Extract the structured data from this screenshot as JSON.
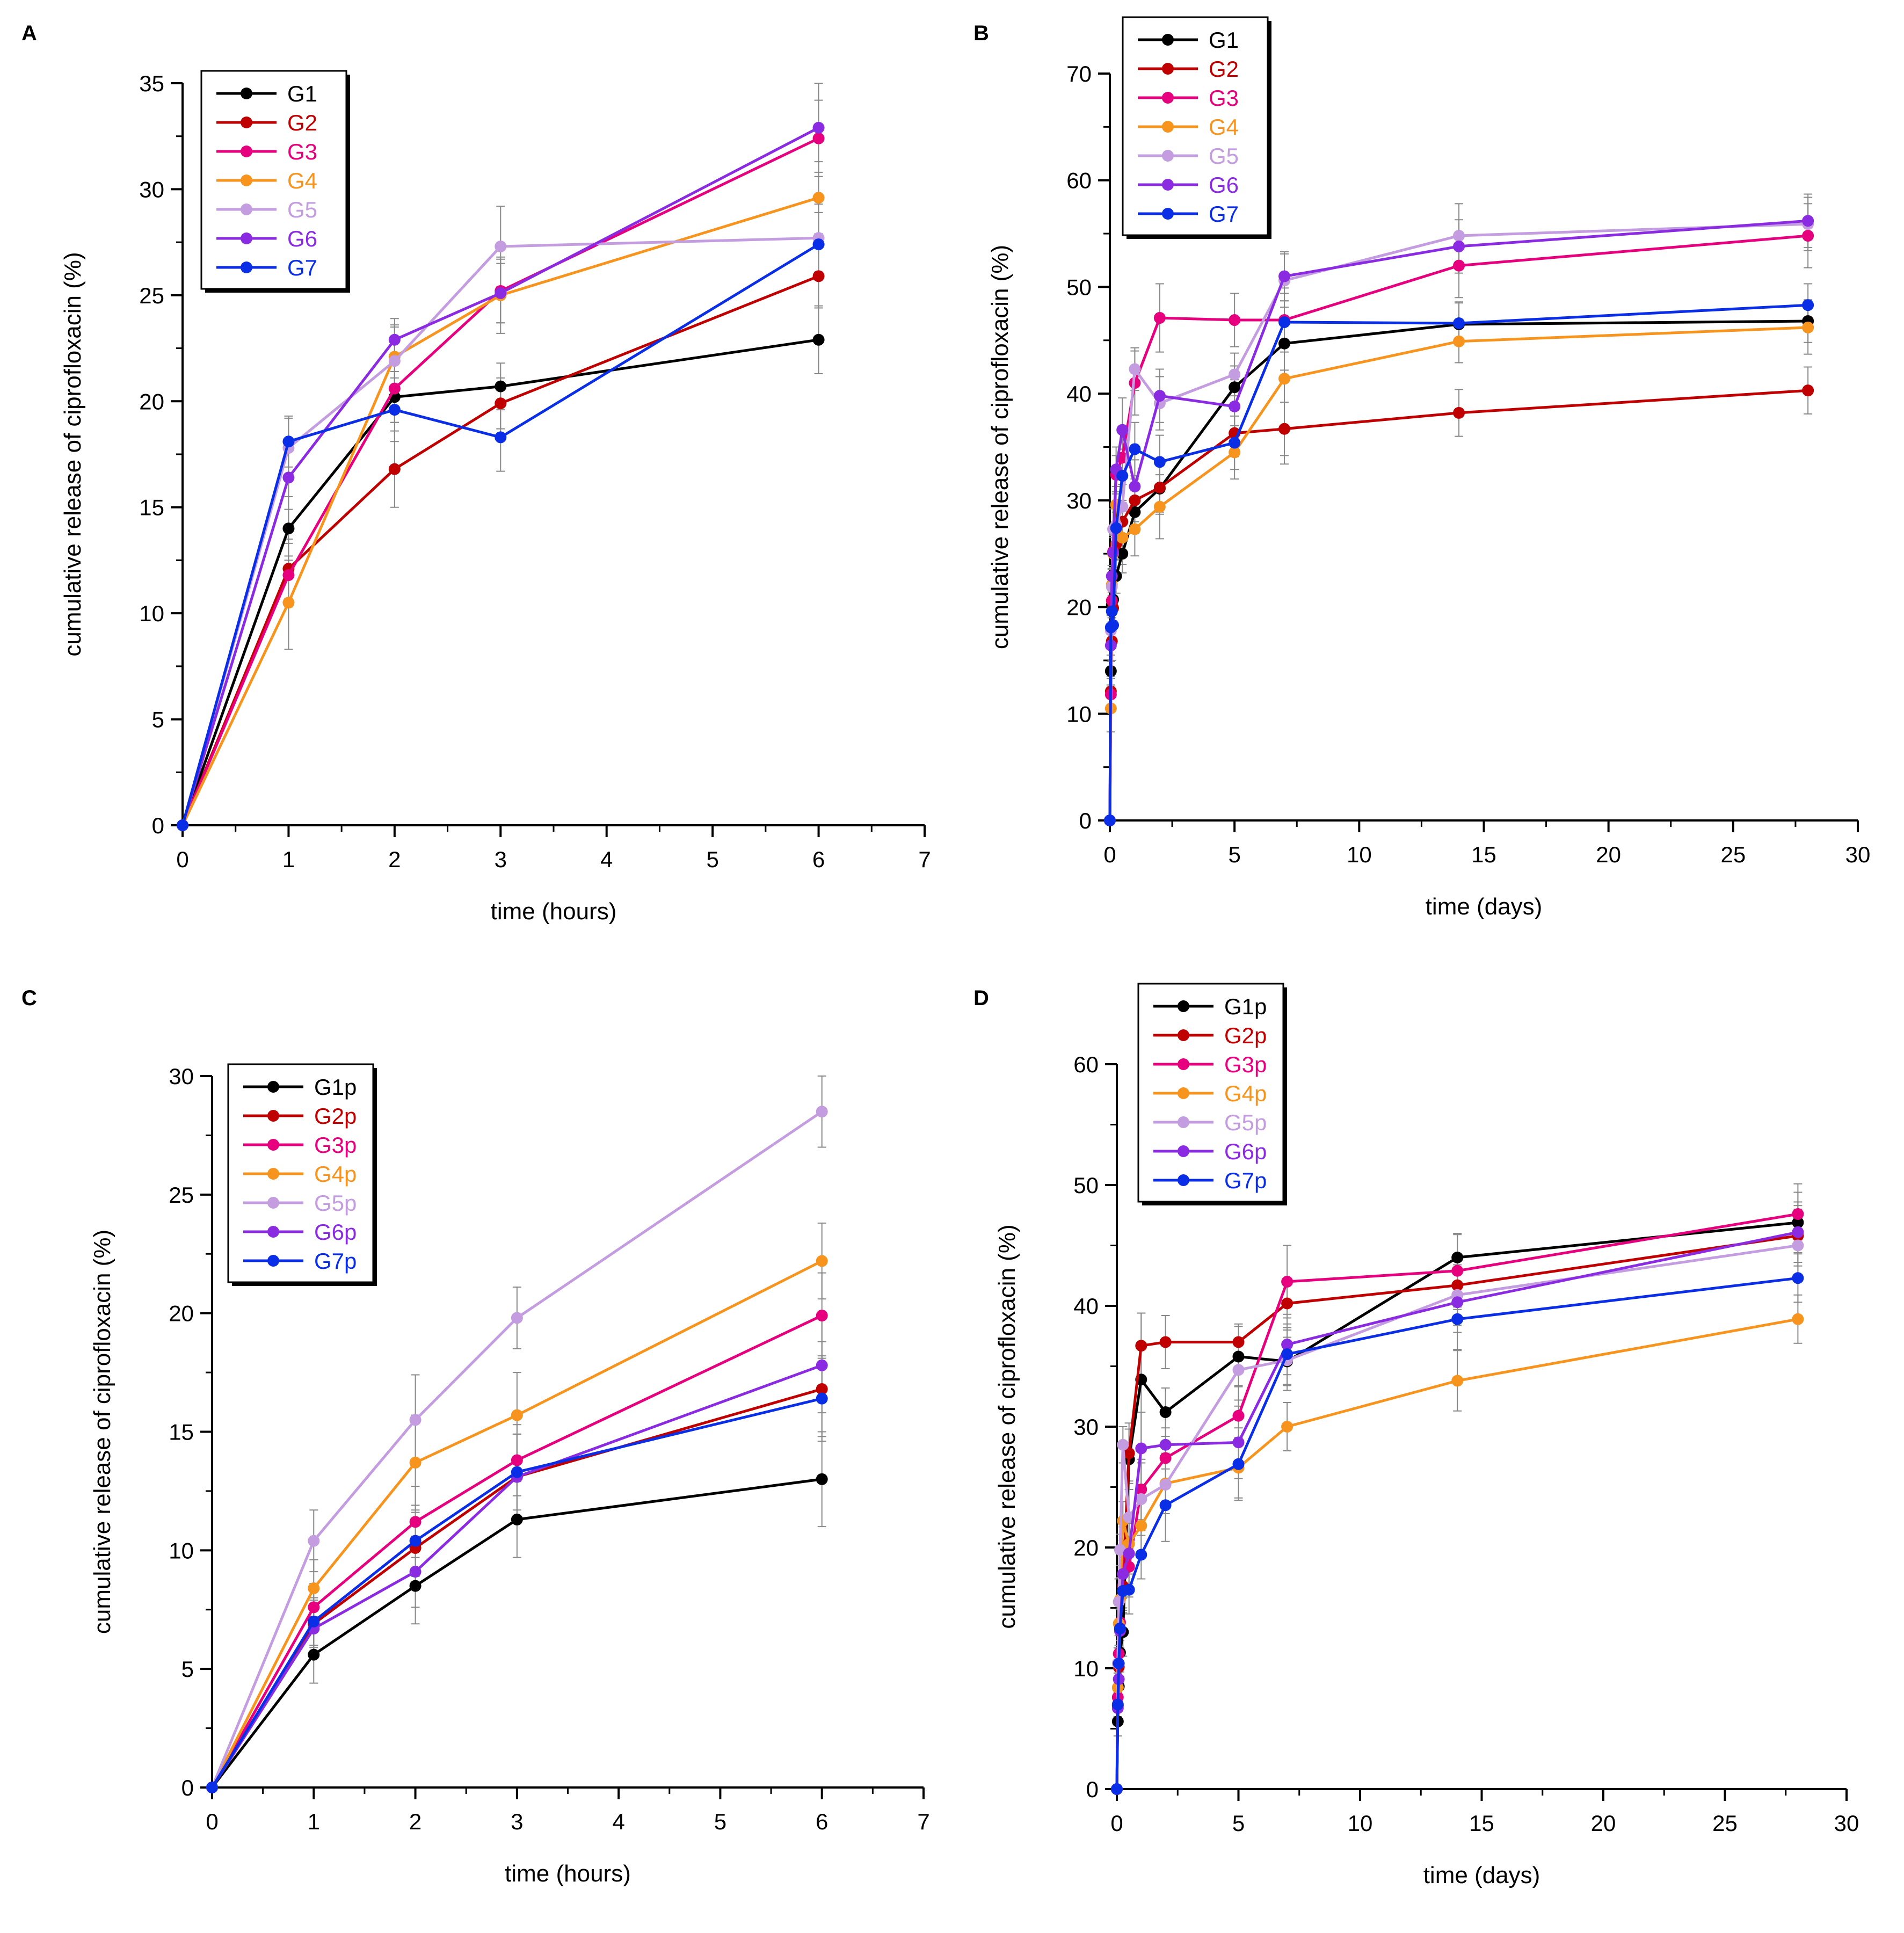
{
  "figure": {
    "panels": [
      "A",
      "B",
      "C",
      "D"
    ]
  },
  "colors": {
    "black": "#000000",
    "darkred": "#c00000",
    "pink": "#e6007e",
    "orange": "#f7941d",
    "lavender": "#c49ce0",
    "purple": "#8a2be2",
    "blue": "#0a2de6"
  },
  "chart_data": [
    {
      "panel": "A",
      "type": "line",
      "title": "",
      "xlabel": "time (hours)",
      "ylabel": "cumulative release of ciprofloxacin (%)",
      "xlim": [
        0,
        7
      ],
      "ylim": [
        0,
        35
      ],
      "xticks": [
        0,
        1,
        2,
        3,
        4,
        5,
        6,
        7
      ],
      "yticks": [
        0,
        5,
        10,
        15,
        20,
        25,
        30,
        35
      ],
      "legend_position": "top-left",
      "series": [
        {
          "name": "G1",
          "color": "#000000",
          "x": [
            0,
            1,
            2,
            3,
            6
          ],
          "y": [
            0,
            14.0,
            20.2,
            20.7,
            22.9
          ],
          "err": [
            0,
            1.5,
            1.2,
            1.1,
            1.6
          ]
        },
        {
          "name": "G2",
          "color": "#c00000",
          "x": [
            0,
            1,
            2,
            3,
            6
          ],
          "y": [
            0,
            12.1,
            16.8,
            19.9,
            25.9
          ],
          "err": [
            0,
            1.4,
            1.8,
            1.2,
            1.5
          ]
        },
        {
          "name": "G3",
          "color": "#e6007e",
          "x": [
            0,
            1,
            2,
            3,
            6
          ],
          "y": [
            0,
            11.8,
            20.6,
            25.2,
            32.4
          ],
          "err": [
            0,
            1.5,
            1.6,
            1.5,
            1.8
          ]
        },
        {
          "name": "G4",
          "color": "#f7941d",
          "x": [
            0,
            1,
            2,
            3,
            6
          ],
          "y": [
            0,
            10.5,
            22.1,
            25.0,
            29.6
          ],
          "err": [
            0,
            2.2,
            1.5,
            1.8,
            1.7
          ]
        },
        {
          "name": "G5",
          "color": "#c49ce0",
          "x": [
            0,
            1,
            2,
            3,
            6
          ],
          "y": [
            0,
            17.8,
            21.9,
            27.3,
            27.7
          ],
          "err": [
            0,
            1.4,
            1.6,
            1.9,
            1.6
          ]
        },
        {
          "name": "G6",
          "color": "#8a2be2",
          "x": [
            0,
            1,
            2,
            3,
            6
          ],
          "y": [
            0,
            16.4,
            22.9,
            25.1,
            32.9
          ],
          "err": [
            0,
            1.5,
            1.0,
            1.4,
            2.1
          ]
        },
        {
          "name": "G7",
          "color": "#0a2de6",
          "x": [
            0,
            1,
            2,
            3,
            6
          ],
          "y": [
            0,
            18.1,
            19.6,
            18.3,
            27.4
          ],
          "err": [
            0,
            1.2,
            1.5,
            1.6,
            1.5
          ]
        }
      ]
    },
    {
      "panel": "B",
      "type": "line",
      "title": "",
      "xlabel": "time (days)",
      "ylabel": "cumulative release of ciprofloxacin (%)",
      "xlim": [
        0,
        30
      ],
      "ylim": [
        0,
        70
      ],
      "xticks": [
        0,
        5,
        10,
        15,
        20,
        25,
        30
      ],
      "yticks": [
        0,
        10,
        20,
        30,
        40,
        50,
        60,
        70
      ],
      "legend_position": "top-left",
      "series": [
        {
          "name": "G1",
          "color": "#000000",
          "x": [
            0,
            0.04,
            0.08,
            0.13,
            0.25,
            0.5,
            1,
            2,
            5,
            7,
            14,
            28
          ],
          "y": [
            0,
            14.0,
            20.2,
            20.7,
            22.9,
            25.0,
            28.9,
            31.1,
            40.6,
            44.7,
            46.5,
            46.8
          ],
          "err": [
            0,
            1.5,
            1.2,
            1.1,
            1.6,
            1.8,
            2.0,
            2.2,
            2.0,
            2.5,
            2.0,
            2.0
          ]
        },
        {
          "name": "G2",
          "color": "#c00000",
          "x": [
            0,
            0.04,
            0.08,
            0.13,
            0.25,
            0.5,
            1,
            2,
            5,
            7,
            14,
            28
          ],
          "y": [
            0,
            12.1,
            16.8,
            19.9,
            25.9,
            28.0,
            30.0,
            31.2,
            36.3,
            36.7,
            38.2,
            40.3
          ],
          "err": [
            0,
            1.4,
            1.8,
            1.2,
            1.5,
            2.0,
            2.0,
            2.5,
            2.2,
            2.5,
            2.2,
            2.2
          ]
        },
        {
          "name": "G3",
          "color": "#e6007e",
          "x": [
            0,
            0.04,
            0.08,
            0.13,
            0.25,
            0.5,
            1,
            2,
            5,
            7,
            14,
            28
          ],
          "y": [
            0,
            11.8,
            20.6,
            25.2,
            32.4,
            34.0,
            41.0,
            47.1,
            46.9,
            46.9,
            52.0,
            54.8
          ],
          "err": [
            0,
            1.5,
            1.6,
            1.5,
            1.8,
            2.5,
            3.0,
            3.2,
            2.5,
            3.0,
            3.0,
            3.0
          ]
        },
        {
          "name": "G4",
          "color": "#f7941d",
          "x": [
            0,
            0.04,
            0.08,
            0.13,
            0.25,
            0.5,
            1,
            2,
            5,
            7,
            14,
            28
          ],
          "y": [
            0,
            10.5,
            22.1,
            25.0,
            29.6,
            26.5,
            27.3,
            29.4,
            34.5,
            41.4,
            44.9,
            46.2
          ],
          "err": [
            0,
            2.2,
            1.5,
            1.8,
            1.7,
            2.5,
            2.5,
            3.0,
            2.5,
            8.0,
            2.0,
            2.5
          ]
        },
        {
          "name": "G5",
          "color": "#c49ce0",
          "x": [
            0,
            0.04,
            0.08,
            0.13,
            0.25,
            0.5,
            1,
            2,
            5,
            7,
            14,
            28
          ],
          "y": [
            0,
            17.8,
            21.9,
            27.3,
            27.7,
            29.4,
            42.3,
            39.1,
            41.8,
            50.6,
            54.8,
            55.9
          ],
          "err": [
            0,
            1.4,
            1.6,
            1.9,
            1.6,
            3.0,
            2.0,
            2.5,
            2.0,
            2.5,
            3.0,
            2.5
          ]
        },
        {
          "name": "G6",
          "color": "#8a2be2",
          "x": [
            0,
            0.04,
            0.08,
            0.13,
            0.25,
            0.5,
            1,
            2,
            5,
            7,
            14,
            28
          ],
          "y": [
            0,
            16.4,
            22.9,
            25.1,
            32.9,
            36.6,
            31.3,
            39.8,
            38.8,
            51.0,
            53.8,
            56.2
          ],
          "err": [
            0,
            1.5,
            1.0,
            1.4,
            2.1,
            3.0,
            2.5,
            2.5,
            2.5,
            2.3,
            2.5,
            2.5
          ]
        },
        {
          "name": "G7",
          "color": "#0a2de6",
          "x": [
            0,
            0.04,
            0.08,
            0.13,
            0.25,
            0.5,
            1,
            2,
            5,
            7,
            14,
            28
          ],
          "y": [
            0,
            18.1,
            19.6,
            18.3,
            27.4,
            32.3,
            34.8,
            33.6,
            35.4,
            46.7,
            46.6,
            48.3
          ],
          "err": [
            0,
            1.2,
            1.5,
            1.6,
            1.5,
            2.5,
            2.5,
            2.5,
            2.5,
            2.0,
            2.0,
            2.0
          ]
        }
      ]
    },
    {
      "panel": "C",
      "type": "line",
      "title": "",
      "xlabel": "time (hours)",
      "ylabel": "cumulative release of ciprofloxacin (%)",
      "xlim": [
        0,
        7
      ],
      "ylim": [
        0,
        30
      ],
      "xticks": [
        0,
        1,
        2,
        3,
        4,
        5,
        6,
        7
      ],
      "yticks": [
        0,
        5,
        10,
        15,
        20,
        25,
        30
      ],
      "legend_position": "top-left",
      "series": [
        {
          "name": "G1p",
          "color": "#000000",
          "x": [
            0,
            1,
            2,
            3,
            6
          ],
          "y": [
            0,
            5.6,
            8.5,
            11.3,
            13.0
          ],
          "err": [
            0,
            1.2,
            1.6,
            1.6,
            2.0
          ]
        },
        {
          "name": "G2p",
          "color": "#c00000",
          "x": [
            0,
            1,
            2,
            3,
            6
          ],
          "y": [
            0,
            6.9,
            10.1,
            13.1,
            16.8
          ],
          "err": [
            0,
            1.0,
            1.5,
            1.8,
            2.0
          ]
        },
        {
          "name": "G3p",
          "color": "#e6007e",
          "x": [
            0,
            1,
            2,
            3,
            6
          ],
          "y": [
            0,
            7.6,
            11.2,
            13.8,
            19.9
          ],
          "err": [
            0,
            1.0,
            1.5,
            1.5,
            1.8
          ]
        },
        {
          "name": "G4p",
          "color": "#f7941d",
          "x": [
            0,
            1,
            2,
            3,
            6
          ],
          "y": [
            0,
            8.4,
            13.7,
            15.7,
            22.2
          ],
          "err": [
            0,
            1.2,
            2.0,
            1.8,
            1.6
          ]
        },
        {
          "name": "G5p",
          "color": "#c49ce0",
          "x": [
            0,
            1,
            2,
            3,
            6
          ],
          "y": [
            0,
            10.4,
            15.5,
            19.8,
            28.5
          ],
          "err": [
            0,
            1.3,
            1.9,
            1.3,
            1.5
          ]
        },
        {
          "name": "G6p",
          "color": "#8a2be2",
          "x": [
            0,
            1,
            2,
            3,
            6
          ],
          "y": [
            0,
            6.7,
            9.1,
            13.1,
            17.8
          ],
          "err": [
            0,
            1.0,
            1.5,
            1.8,
            2.0
          ]
        },
        {
          "name": "G7p",
          "color": "#0a2de6",
          "x": [
            0,
            1,
            2,
            3,
            6
          ],
          "y": [
            0,
            7.0,
            10.4,
            13.3,
            16.4
          ],
          "err": [
            0,
            1.0,
            1.5,
            1.6,
            1.8
          ]
        }
      ]
    },
    {
      "panel": "D",
      "type": "line",
      "title": "",
      "xlabel": "time (days)",
      "ylabel": "cumulative release of ciprofloxacin (%)",
      "xlim": [
        0,
        30
      ],
      "ylim": [
        0,
        60
      ],
      "xticks": [
        0,
        5,
        10,
        15,
        20,
        25,
        30
      ],
      "yticks": [
        0,
        10,
        20,
        30,
        40,
        50,
        60
      ],
      "legend_position": "top-left",
      "series": [
        {
          "name": "G1p",
          "color": "#000000",
          "x": [
            0,
            0.04,
            0.08,
            0.13,
            0.25,
            0.5,
            1,
            2,
            5,
            7,
            14,
            28
          ],
          "y": [
            0,
            5.6,
            8.5,
            11.3,
            13.0,
            27.3,
            33.9,
            31.2,
            35.8,
            35.4,
            44.0,
            46.9
          ],
          "err": [
            0,
            1.2,
            1.6,
            1.6,
            2.0,
            2.5,
            5.5,
            2.0,
            2.5,
            2.0,
            2.0,
            2.5
          ]
        },
        {
          "name": "G2p",
          "color": "#c00000",
          "x": [
            0,
            0.04,
            0.08,
            0.13,
            0.25,
            0.5,
            1,
            2,
            5,
            7,
            14,
            28
          ],
          "y": [
            0,
            6.9,
            10.1,
            13.1,
            16.8,
            27.8,
            36.7,
            37.0,
            37.0,
            40.2,
            41.7,
            45.8
          ],
          "err": [
            0,
            1.0,
            1.5,
            1.8,
            2.0,
            2.5,
            2.7,
            2.2,
            1.5,
            2.0,
            2.0,
            2.5
          ]
        },
        {
          "name": "G3p",
          "color": "#e6007e",
          "x": [
            0,
            0.04,
            0.08,
            0.13,
            0.25,
            0.5,
            1,
            2,
            5,
            7,
            14,
            28
          ],
          "y": [
            0,
            7.6,
            11.2,
            13.8,
            19.9,
            18.4,
            24.8,
            27.4,
            30.9,
            42.0,
            42.9,
            47.6
          ],
          "err": [
            0,
            1.0,
            1.5,
            1.5,
            1.8,
            2.5,
            2.5,
            2.5,
            2.5,
            3.0,
            3.0,
            2.5
          ]
        },
        {
          "name": "G4p",
          "color": "#f7941d",
          "x": [
            0,
            0.04,
            0.08,
            0.13,
            0.25,
            0.5,
            1,
            2,
            5,
            7,
            14,
            28
          ],
          "y": [
            0,
            8.4,
            13.7,
            15.7,
            22.2,
            20.3,
            21.8,
            25.3,
            26.6,
            30.0,
            33.8,
            38.9
          ],
          "err": [
            0,
            1.2,
            2.0,
            1.8,
            1.6,
            2.5,
            2.5,
            2.5,
            2.5,
            2.0,
            2.5,
            2.0
          ]
        },
        {
          "name": "G5p",
          "color": "#c49ce0",
          "x": [
            0,
            0.04,
            0.08,
            0.13,
            0.25,
            0.5,
            1,
            2,
            5,
            7,
            14,
            28
          ],
          "y": [
            0,
            10.4,
            15.5,
            19.8,
            28.5,
            22.5,
            24.0,
            25.2,
            34.7,
            35.5,
            40.9,
            45.0
          ],
          "err": [
            0,
            1.3,
            1.9,
            1.3,
            1.5,
            3.0,
            3.0,
            2.0,
            2.5,
            2.5,
            2.5,
            3.0
          ]
        },
        {
          "name": "G6p",
          "color": "#8a2be2",
          "x": [
            0,
            0.04,
            0.08,
            0.13,
            0.25,
            0.5,
            1,
            2,
            5,
            7,
            14,
            28
          ],
          "y": [
            0,
            6.7,
            9.1,
            13.1,
            17.8,
            19.5,
            28.2,
            28.5,
            28.7,
            36.8,
            40.3,
            46.1
          ],
          "err": [
            0,
            1.0,
            1.5,
            1.8,
            2.0,
            2.5,
            3.0,
            3.0,
            3.0,
            2.5,
            2.5,
            2.5
          ]
        },
        {
          "name": "G7p",
          "color": "#0a2de6",
          "x": [
            0,
            0.04,
            0.08,
            0.13,
            0.25,
            0.5,
            1,
            2,
            5,
            7,
            14,
            28
          ],
          "y": [
            0,
            7.0,
            10.4,
            13.3,
            16.4,
            16.5,
            19.4,
            23.5,
            26.9,
            36.0,
            38.9,
            42.3
          ],
          "err": [
            0,
            1.0,
            1.5,
            1.6,
            1.8,
            2.0,
            2.0,
            3.0,
            3.0,
            2.5,
            2.5,
            2.0
          ]
        }
      ]
    }
  ]
}
